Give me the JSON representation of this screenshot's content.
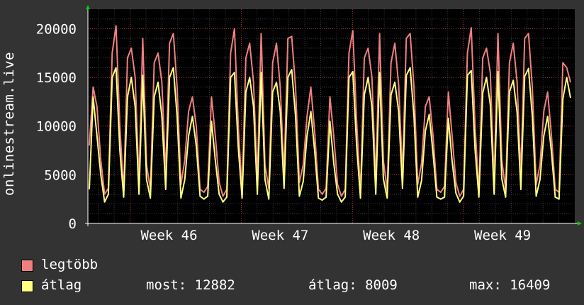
{
  "chart_data": {
    "type": "line",
    "ylabel": "onlinestream.live",
    "ylim": [
      0,
      22000
    ],
    "yticks": [
      0,
      5000,
      10000,
      15000,
      20000
    ],
    "ytick_labels": [
      "0",
      "5000",
      "10000",
      "15000",
      "20000"
    ],
    "xticks": [
      "Week 46",
      "Week 47",
      "Week 48",
      "Week 49"
    ],
    "grid": true,
    "series": [
      {
        "name": "legtöbb",
        "color": "#f08080",
        "values": [
          8000,
          14000,
          12000,
          6500,
          3000,
          3600,
          17500,
          20300,
          10000,
          3200,
          17000,
          18000,
          15000,
          4200,
          19000,
          6000,
          3500,
          16500,
          17500,
          14500,
          5000,
          18500,
          19500,
          14000,
          4000,
          6500,
          11500,
          13000,
          10000,
          3500,
          3200,
          3800,
          13000,
          9000,
          4200,
          2800,
          3500,
          17500,
          20000,
          10000,
          3200,
          17000,
          18500,
          14500,
          4500,
          19500,
          6000,
          3600,
          16500,
          18500,
          14000,
          5000,
          19000,
          19200,
          14000,
          4200,
          6000,
          11000,
          14000,
          9500,
          3500,
          3000,
          3600,
          13000,
          9000,
          4000,
          2800,
          3500,
          17500,
          19800,
          10500,
          3200,
          17000,
          18000,
          15000,
          4200,
          19500,
          6500,
          3400,
          16500,
          18500,
          14200,
          5000,
          19000,
          19500,
          14000,
          4000,
          6200,
          12000,
          13000,
          9000,
          3500,
          3200,
          3800,
          13500,
          9000,
          4200,
          2800,
          3500,
          17500,
          20100,
          10000,
          3200,
          17000,
          18000,
          15500,
          4200,
          19500,
          6500,
          3500,
          16500,
          18500,
          14500,
          5000,
          19000,
          19500,
          14000,
          4000,
          6000,
          11500,
          13500,
          9000,
          3500,
          3200,
          16500,
          16000,
          14500
        ]
      },
      {
        "name": "átlag",
        "color": "#ffff80",
        "values": [
          3500,
          13000,
          9000,
          5000,
          2200,
          3000,
          15000,
          16000,
          7500,
          2700,
          13000,
          15000,
          12000,
          3000,
          15200,
          4500,
          2600,
          13000,
          14500,
          11000,
          3500,
          15000,
          16000,
          11000,
          2600,
          4500,
          9000,
          11000,
          8000,
          2800,
          2500,
          2800,
          10500,
          6500,
          3000,
          2200,
          2700,
          15000,
          15500,
          7800,
          2600,
          13500,
          15000,
          12000,
          3000,
          15500,
          4500,
          2500,
          13500,
          14500,
          11500,
          3600,
          15000,
          15800,
          11000,
          2800,
          4300,
          9000,
          11500,
          7500,
          2600,
          2400,
          2700,
          10500,
          6200,
          3000,
          2200,
          2700,
          15000,
          15600,
          8000,
          2600,
          13200,
          15000,
          12000,
          3000,
          15500,
          4600,
          2600,
          13200,
          14500,
          11500,
          3600,
          15200,
          16000,
          11000,
          2700,
          4400,
          9500,
          11200,
          7200,
          2700,
          2500,
          2700,
          10800,
          6400,
          3100,
          2200,
          2800,
          15200,
          15700,
          7600,
          2700,
          13400,
          15000,
          12200,
          3000,
          15600,
          4600,
          2700,
          13500,
          14700,
          11400,
          3500,
          15100,
          15900,
          11000,
          2800,
          4500,
          9000,
          11000,
          7300,
          2700,
          2500,
          12800,
          15000,
          12882
        ]
      }
    ]
  },
  "legend": {
    "max_label": "legtöbb",
    "avg_label": "átlag",
    "now": "most: 12882",
    "avg": "átlag: 8009",
    "max": "max: 16409"
  }
}
